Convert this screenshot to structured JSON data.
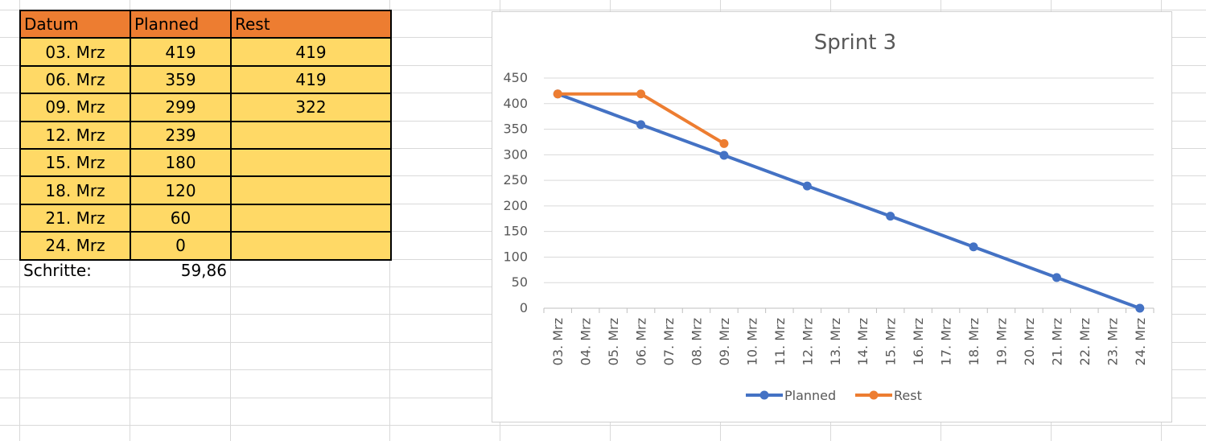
{
  "table": {
    "headers": [
      "Datum",
      "Planned",
      "Rest"
    ],
    "rows": [
      [
        "03. Mrz",
        "419",
        "419"
      ],
      [
        "06. Mrz",
        "359",
        "419"
      ],
      [
        "09. Mrz",
        "299",
        "322"
      ],
      [
        "12. Mrz",
        "239",
        ""
      ],
      [
        "15. Mrz",
        "180",
        ""
      ],
      [
        "18. Mrz",
        "120",
        ""
      ],
      [
        "21. Mrz",
        "60",
        ""
      ],
      [
        "24. Mrz",
        "0",
        ""
      ]
    ],
    "footer_label": "Schritte:",
    "footer_value": "59,86"
  },
  "colors": {
    "header_fill": "#ed7d31",
    "row_fill": "#ffd966",
    "planned": "#4472c4",
    "rest": "#ed7d31"
  },
  "chart_data": {
    "type": "line",
    "title": "Sprint 3",
    "xlabel": "",
    "ylabel": "",
    "ylim": [
      0,
      450
    ],
    "yticks": [
      0,
      50,
      100,
      150,
      200,
      250,
      300,
      350,
      400,
      450
    ],
    "grid": true,
    "legend_position": "bottom",
    "categories": [
      "03. Mrz",
      "04. Mrz",
      "05. Mrz",
      "06. Mrz",
      "07. Mrz",
      "08. Mrz",
      "09. Mrz",
      "10. Mrz",
      "11. Mrz",
      "12. Mrz",
      "13. Mrz",
      "14. Mrz",
      "15. Mrz",
      "16. Mrz",
      "17. Mrz",
      "18. Mrz",
      "19. Mrz",
      "20. Mrz",
      "21. Mrz",
      "22. Mrz",
      "23. Mrz",
      "24. Mrz"
    ],
    "series": [
      {
        "name": "Planned",
        "points": [
          {
            "x": "03. Mrz",
            "y": 419
          },
          {
            "x": "06. Mrz",
            "y": 359
          },
          {
            "x": "09. Mrz",
            "y": 299
          },
          {
            "x": "12. Mrz",
            "y": 239
          },
          {
            "x": "15. Mrz",
            "y": 180
          },
          {
            "x": "18. Mrz",
            "y": 120
          },
          {
            "x": "21. Mrz",
            "y": 60
          },
          {
            "x": "24. Mrz",
            "y": 0
          }
        ]
      },
      {
        "name": "Rest",
        "points": [
          {
            "x": "03. Mrz",
            "y": 419
          },
          {
            "x": "06. Mrz",
            "y": 419
          },
          {
            "x": "09. Mrz",
            "y": 322
          }
        ]
      }
    ]
  }
}
